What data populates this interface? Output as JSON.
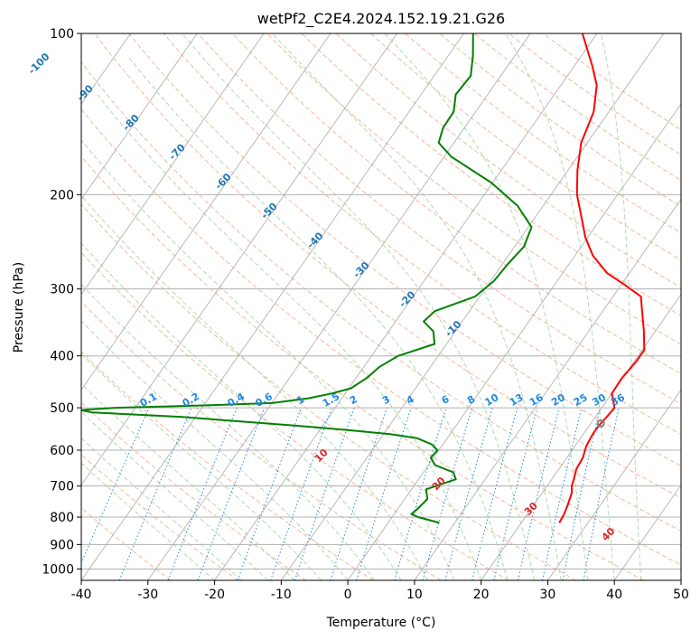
{
  "chart_data": {
    "type": "line",
    "chart_kind": "Skew-T log-P diagram",
    "title": "wetPf2_C2E4.2024.152.19.21.G26",
    "xlabel": "Temperature (°C)",
    "ylabel": "Pressure (hPa)",
    "xlim": [
      -40,
      50
    ],
    "ylim": [
      1050,
      100
    ],
    "y_scale": "log",
    "grid": true,
    "x_ticks": [
      "-40",
      "-30",
      "-20",
      "-10",
      "0",
      "10",
      "20",
      "30",
      "40",
      "50"
    ],
    "y_ticks": [
      "100",
      "200",
      "300",
      "400",
      "500",
      "600",
      "700",
      "800",
      "900",
      "1000"
    ],
    "series": [
      {
        "name": "temperature",
        "color": "#ff0000",
        "pressure": [
          820,
          790,
          760,
          720,
          700,
          680,
          650,
          620,
          590,
          560,
          540,
          520,
          500,
          470,
          440,
          410,
          390,
          360,
          330,
          310,
          295,
          280,
          260,
          240,
          220,
          200,
          180,
          160,
          140,
          125,
          115,
          100
        ],
        "temperature": [
          25.7,
          25.5,
          25.1,
          24.4,
          23.7,
          23.3,
          22.6,
          22.4,
          21.7,
          21.4,
          21.4,
          21.7,
          21.9,
          20.0,
          19.9,
          20.3,
          20.3,
          18.3,
          15.9,
          14.2,
          10.6,
          6.6,
          2.7,
          -0.4,
          -3.1,
          -6.1,
          -8.6,
          -10.9,
          -12.3,
          -14.6,
          -17.3,
          -22.2
        ]
      },
      {
        "name": "dewpoint",
        "color": "#008000",
        "pressure": [
          820,
          800,
          790,
          770,
          740,
          710,
          680,
          660,
          640,
          620,
          600,
          585,
          570,
          560,
          550,
          540,
          530,
          520,
          515,
          510,
          505,
          500,
          495,
          490,
          480,
          470,
          460,
          440,
          420,
          400,
          380,
          360,
          345,
          330,
          310,
          290,
          270,
          250,
          230,
          210,
          190,
          170,
          160,
          150,
          140,
          130,
          120,
          110,
          100
        ],
        "temperature": [
          7.7,
          3.9,
          2.6,
          3.0,
          3.4,
          2.2,
          5.6,
          4.5,
          1.0,
          -0.4,
          -0.2,
          -1.7,
          -4.5,
          -9.0,
          -16.0,
          -24.0,
          -33.0,
          -42.0,
          -49.0,
          -56.0,
          -58.0,
          -53.0,
          -40.0,
          -30.0,
          -25.0,
          -22.0,
          -19.7,
          -18.4,
          -17.7,
          -16.0,
          -11.8,
          -13.3,
          -15.8,
          -15.2,
          -10.7,
          -9.5,
          -9.2,
          -8.6,
          -9.5,
          -13.8,
          -20.2,
          -28.9,
          -32.3,
          -33.2,
          -33.3,
          -34.8,
          -34.5,
          -36.3,
          -38.6
        ]
      }
    ],
    "parcel_marker": {
      "label": "o",
      "temperature": 21.5,
      "pressure": 535
    },
    "isotherm_labels": [
      "-100",
      "-90",
      "-80",
      "-70",
      "-60",
      "-50",
      "-40",
      "-30",
      "-20",
      "-10"
    ],
    "mixing_ratio_labels": [
      "0.1",
      "0.2",
      "0.4",
      "0.6",
      "1",
      "1.5",
      "2",
      "3",
      "4",
      "6",
      "8",
      "10",
      "13",
      "16",
      "20",
      "25",
      "30",
      "36"
    ],
    "moist_adiabat_labels": [
      "10",
      "20",
      "30",
      "40"
    ],
    "colors": {
      "grid": "#b0b0b0",
      "isotherm": "#a9a9a9",
      "dry_adiabat": "#f4a582",
      "moist_adiabat": "#a6d7a6",
      "mixing_ratio": "#1e88e5",
      "isotherm_label": "#1f77b4",
      "moist_label": "#d62728",
      "dry_adiabat_extra": "#d4b48c"
    }
  }
}
